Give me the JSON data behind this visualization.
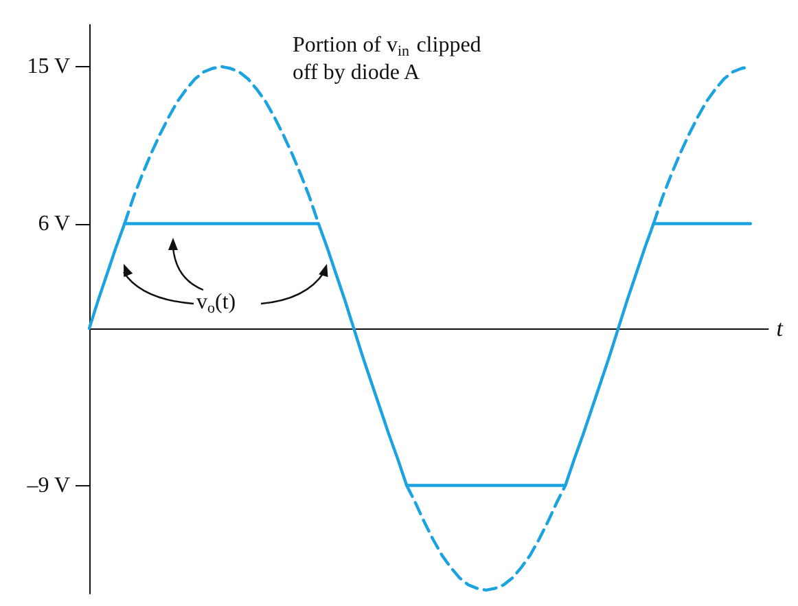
{
  "chart_data": {
    "type": "line",
    "xlabel": "t",
    "categories": [
      null,
      null,
      null,
      null,
      null,
      null,
      null,
      null,
      null,
      null,
      null,
      null,
      null,
      null,
      null,
      null,
      null,
      null,
      null,
      null,
      null,
      null,
      null,
      null,
      null,
      null,
      null,
      null,
      null,
      null,
      null,
      null,
      null,
      null,
      null,
      null,
      null,
      null,
      null,
      null,
      null,
      null,
      null,
      null,
      null,
      null,
      null,
      null,
      null,
      null,
      null,
      null,
      null,
      null,
      null,
      null,
      null,
      null,
      null,
      null,
      null,
      null,
      null,
      null,
      null,
      null,
      null,
      null,
      null,
      null,
      null,
      null,
      null,
      null,
      null,
      null,
      null,
      null
    ],
    "ylim": [
      -15.2,
      17.4
    ],
    "yticks": [
      {
        "value": 15,
        "label": "15 V"
      },
      {
        "value": 6,
        "label": "6 V"
      },
      {
        "value": -9,
        "label": "–9 V"
      }
    ],
    "tick_labels": "y",
    "grid": false,
    "annotations": [
      "Portion of v$_{in}$ clipped off by diode A",
      "v$_{o}$(t)"
    ],
    "series": [
      {
        "color": "#1aa3e0",
        "line_style": "solid",
        "values": [
          0,
          1.6,
          3.1,
          4.6,
          6,
          6,
          6,
          6,
          6,
          6,
          6,
          6,
          6,
          6,
          6,
          6,
          6,
          6,
          6,
          6,
          6,
          6,
          6,
          6,
          6,
          6,
          6,
          4.6,
          3.1,
          1.6,
          0,
          -1.6,
          -3.1,
          -4.6,
          -6.1,
          -7.5,
          -9,
          -9,
          -9,
          -9,
          -9,
          -9,
          -9,
          -9,
          -9,
          -9,
          -9,
          -9,
          -9,
          -9,
          -9,
          -9,
          -9,
          -9,
          -9,
          -7.5,
          -6.1,
          -4.6,
          -3.1,
          -1.6,
          0,
          1.6,
          3.1,
          4.6,
          6,
          6,
          6,
          6,
          6,
          6,
          6,
          6,
          6,
          6,
          6,
          6,
          null,
          null
        ]
      },
      {
        "color": "#1aa3e0",
        "line_style": "dashed",
        "values": [
          null,
          null,
          null,
          null,
          6,
          7.5,
          8.8,
          10.0,
          11.1,
          12.1,
          13.0,
          13.7,
          14.3,
          14.7,
          14.9,
          15,
          14.9,
          14.7,
          14.3,
          13.7,
          13.0,
          12.1,
          11.1,
          10.0,
          8.8,
          7.5,
          6,
          null,
          null,
          null,
          null,
          null,
          null,
          null,
          null,
          null,
          -9,
          -10.0,
          -11.1,
          -12.1,
          -13.0,
          -13.7,
          -14.3,
          -14.7,
          -14.9,
          -15,
          -14.9,
          -14.7,
          -14.3,
          -13.7,
          -13.0,
          -12.1,
          -11.1,
          -10.0,
          -9,
          null,
          null,
          null,
          null,
          null,
          null,
          null,
          null,
          null,
          6,
          7.5,
          8.8,
          10.0,
          11.1,
          12.1,
          13.0,
          13.7,
          14.3,
          14.7,
          14.9,
          15,
          null,
          null
        ]
      }
    ]
  }
}
